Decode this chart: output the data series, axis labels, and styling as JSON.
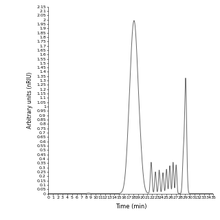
{
  "title": "",
  "xlabel": "Time (min)",
  "ylabel": "Arbitrary units (nRIU)",
  "xlim": [
    0,
    35
  ],
  "ylim": [
    0,
    2.15
  ],
  "line_color": "#666666",
  "line_width": 0.7,
  "background_color": "#ffffff",
  "font_size": 4.5,
  "xlabel_fontsize": 6,
  "ylabel_fontsize": 5.5,
  "peaks_main": [
    {
      "mu": 18.2,
      "sigma": 0.85,
      "amp": 1.96
    },
    {
      "mu": 17.1,
      "sigma": 0.55,
      "amp": 0.2
    },
    {
      "mu": 19.6,
      "sigma": 0.45,
      "amp": 0.12
    }
  ],
  "peaks_small": [
    {
      "mu": 21.8,
      "sigma": 0.18,
      "amp": 0.36
    },
    {
      "mu": 22.7,
      "sigma": 0.16,
      "amp": 0.25
    },
    {
      "mu": 23.5,
      "sigma": 0.16,
      "amp": 0.27
    },
    {
      "mu": 24.3,
      "sigma": 0.16,
      "amp": 0.24
    },
    {
      "mu": 25.05,
      "sigma": 0.16,
      "amp": 0.28
    },
    {
      "mu": 25.75,
      "sigma": 0.16,
      "amp": 0.32
    },
    {
      "mu": 26.45,
      "sigma": 0.15,
      "amp": 0.36
    },
    {
      "mu": 27.1,
      "sigma": 0.15,
      "amp": 0.33
    }
  ],
  "peak_late": {
    "mu": 29.1,
    "sigma": 0.22,
    "amp": 1.32
  },
  "peak_late2": {
    "mu": 28.6,
    "sigma": 0.18,
    "amp": 0.38
  }
}
